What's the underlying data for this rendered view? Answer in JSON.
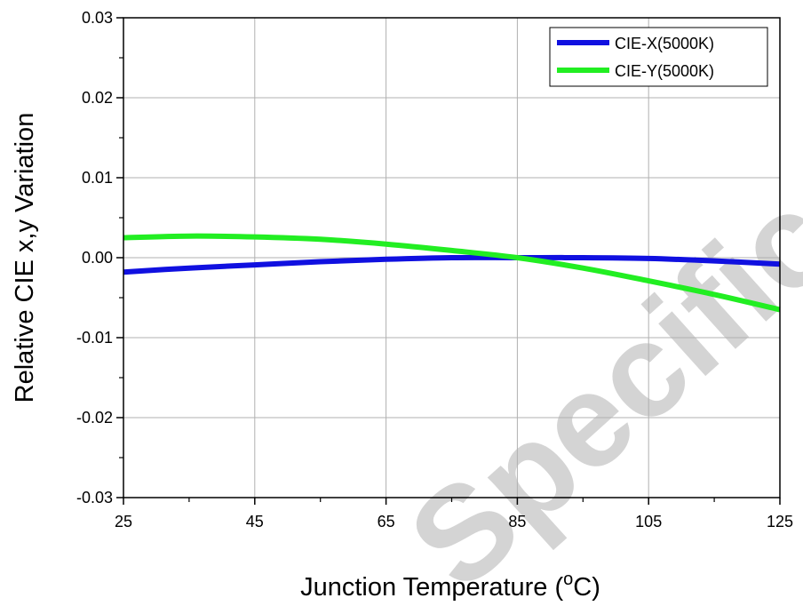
{
  "chart_data": {
    "type": "line",
    "title": "",
    "xlabel": "Junction Temperature (",
    "xlabel_sup": "o",
    "xlabel_suffix": "C)",
    "ylabel": "Relative CIE x,y Variation",
    "xlim": [
      25,
      125
    ],
    "ylim": [
      -0.03,
      0.03
    ],
    "xticks": [
      25,
      45,
      65,
      85,
      105,
      125
    ],
    "xtick_labels": [
      "25",
      "45",
      "65",
      "85",
      "105",
      "125"
    ],
    "yticks": [
      -0.03,
      -0.02,
      -0.01,
      0.0,
      0.01,
      0.02,
      0.03
    ],
    "ytick_labels": [
      "-0.03",
      "-0.02",
      "-0.01",
      "0.00",
      "0.01",
      "0.02",
      "0.03"
    ],
    "grid": true,
    "legend_position": "top-right",
    "series": [
      {
        "name": "CIE-X(5000K)",
        "color": "#1010e0",
        "x": [
          25,
          35,
          45,
          55,
          65,
          75,
          85,
          95,
          105,
          115,
          125
        ],
        "y": [
          -0.0018,
          -0.0013,
          -0.0009,
          -0.0005,
          -0.0002,
          0.0,
          0.0,
          0.0,
          -0.0001,
          -0.0004,
          -0.0008
        ]
      },
      {
        "name": "CIE-Y(5000K)",
        "color": "#22ee22",
        "x": [
          25,
          35,
          45,
          55,
          65,
          75,
          85,
          95,
          105,
          115,
          125
        ],
        "y": [
          0.0025,
          0.0027,
          0.0026,
          0.0023,
          0.0017,
          0.0009,
          0.0,
          -0.0013,
          -0.0029,
          -0.0046,
          -0.0065
        ]
      }
    ]
  },
  "watermark": {
    "text": "Specification",
    "color": "#cccccc"
  }
}
